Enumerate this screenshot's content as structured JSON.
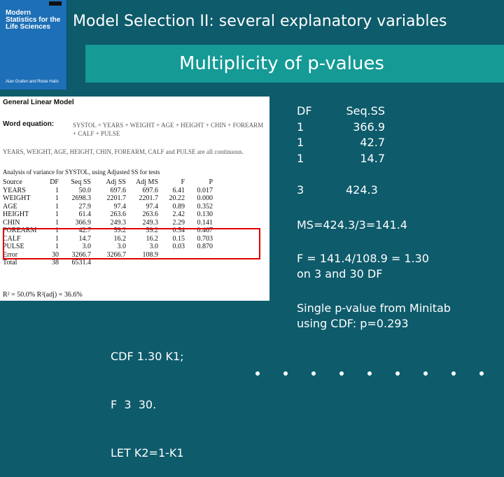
{
  "title": "Model Selection II: several explanatory variables",
  "subtitle": "Multiplicity of p-values",
  "book_cover": {
    "title_lines": [
      "Modern",
      "Statistics for the",
      "Life Sciences"
    ],
    "authors": "Alan Grafen and Rosie Hails"
  },
  "panel": {
    "header": "General Linear Model",
    "word_eq_label": "Word equation:",
    "word_eq": "SYSTOL = YEARS + WEIGHT + AGE + HEIGHT + CHIN + FOREARM + CALF + PULSE",
    "continuous_note": "YEARS, WEIGHT, AGE, HEIGHT, CHIN, FOREARM, CALF and PULSE are all continuous.",
    "aov_title": "Analysis of variance for SYSTOL, using Adjusted SS for tests",
    "columns": [
      "Source",
      "DF",
      "Seq SS",
      "Adj SS",
      "Adj MS",
      "F",
      "P"
    ],
    "rows": [
      [
        "YEARS",
        "1",
        "50.0",
        "697.6",
        "697.6",
        "6.41",
        "0.017"
      ],
      [
        "WEIGHT",
        "1",
        "2698.3",
        "2201.7",
        "2201.7",
        "20.22",
        "0.000"
      ],
      [
        "AGE",
        "1",
        "27.9",
        "97.4",
        "97.4",
        "0.89",
        "0.352"
      ],
      [
        "HEIGHT",
        "1",
        "61.4",
        "263.6",
        "263.6",
        "2.42",
        "0.130"
      ],
      [
        "CHIN",
        "1",
        "366.9",
        "249.3",
        "249.3",
        "2.29",
        "0.141"
      ],
      [
        "FOREARM",
        "1",
        "42.7",
        "59.2",
        "59.2",
        "0.54",
        "0.467"
      ],
      [
        "CALF",
        "1",
        "14.7",
        "16.2",
        "16.2",
        "0.15",
        "0.703"
      ],
      [
        "PULSE",
        "1",
        "3.0",
        "3.0",
        "3.0",
        "0.03",
        "0.870"
      ],
      [
        "Error",
        "30",
        "3266.7",
        "3266.7",
        "108.9",
        "",
        ""
      ],
      [
        "Total",
        "38",
        "6531.4",
        "",
        "",
        "",
        ""
      ]
    ],
    "rsq": "R² = 50.0%     R²(adj) = 36.6%"
  },
  "anova_summary": {
    "df_header": "DF",
    "ss_header": "Seq.SS",
    "df_values": [
      "1",
      "1",
      "1"
    ],
    "ss_values": [
      "366.9",
      "42.7",
      "14.7"
    ],
    "df_total": "3",
    "ss_total": "424.3"
  },
  "ms_line": "MS=424.3/3=141.4",
  "f_line1": "F = 141.4/108.9 = 1.30",
  "f_line2": "on 3 and 30 DF",
  "pvalue_line1": "Single p-value from Minitab",
  "pvalue_line2": "using CDF: p=0.293",
  "code_lines": [
    "CDF 1.30 K1;",
    "F  3  30.",
    "LET K2=1-K1"
  ]
}
